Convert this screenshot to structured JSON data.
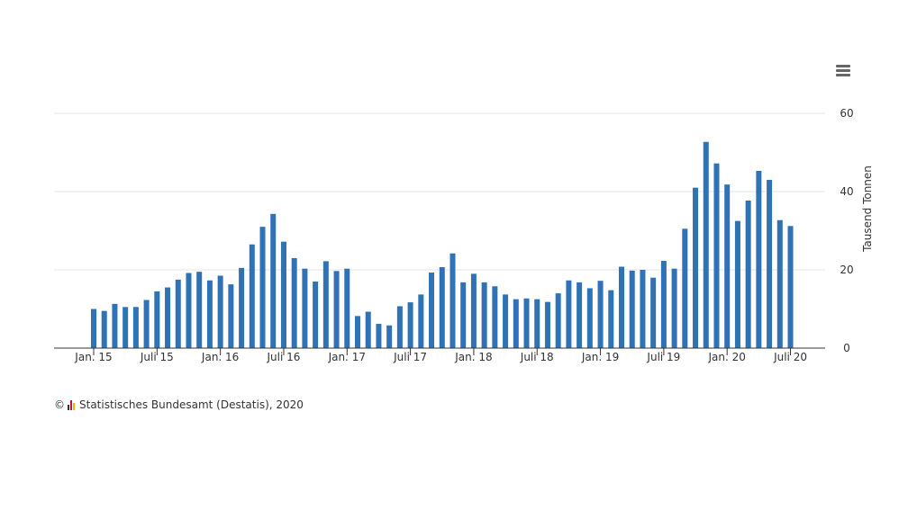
{
  "chart_data": {
    "type": "bar",
    "series": [
      {
        "values": [
          10,
          9.5,
          11.3,
          10.5,
          10.5,
          12.3,
          14.5,
          15.5,
          17.5,
          19.2,
          19.5,
          17.3,
          18.5,
          16.3,
          20.5,
          26.5,
          31,
          34.3,
          27.2,
          23,
          20.3,
          17,
          22.2,
          19.7,
          20.3,
          8.2,
          9.3,
          6.2,
          5.8,
          10.7,
          11.7,
          13.7,
          19.3,
          20.7,
          24.2,
          16.8,
          19,
          16.8,
          15.8,
          13.7,
          12.5,
          12.7,
          12.5,
          11.8,
          14,
          17.3,
          16.8,
          15.3,
          17.2,
          14.8,
          20.8,
          19.8,
          20,
          18,
          22.3,
          20.3,
          30.5,
          41,
          52.7,
          47.2,
          41.8,
          32.5,
          37.7,
          45.3,
          43,
          32.7,
          31.2
        ]
      }
    ],
    "x_ticks": [
      "Jan. 15",
      "Juli 15",
      "Jan. 16",
      "Juli 16",
      "Jan. 17",
      "Juli 17",
      "Jan. 18",
      "Juli 18",
      "Jan. 19",
      "Juli 19",
      "Jan. 20",
      "Juli 20"
    ],
    "y_ticks": [
      "0",
      "20",
      "40",
      "60"
    ],
    "ylabel": "Tausend Tonnen",
    "ylim": [
      0,
      60
    ],
    "y_axis_side": "right",
    "grid": true,
    "legend": false,
    "bar_color": "#2f72b6"
  },
  "credits": {
    "copyright": "©",
    "text": "Statistisches Bundesamt (Destatis), 2020"
  },
  "toolbar": {
    "menu_icon": "hamburger-menu-icon"
  }
}
